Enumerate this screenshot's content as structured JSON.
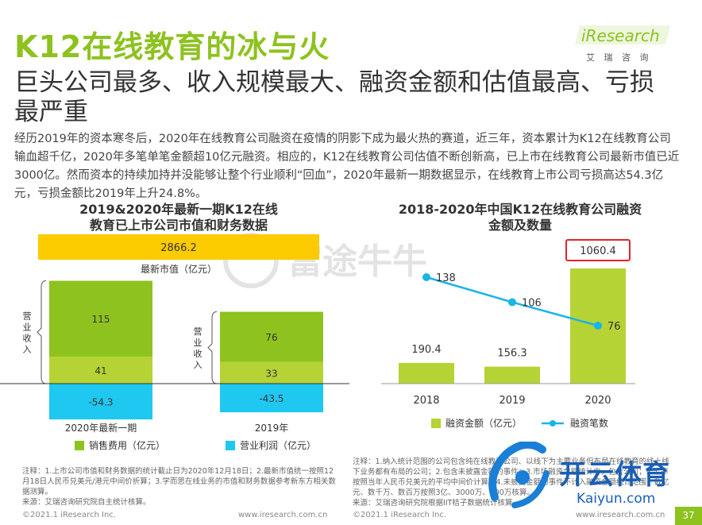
{
  "header": {
    "title": "K12在线教育的冰与火",
    "subtitle": "巨头公司最多、收入规模最大、融资金额和估值最高、亏损最严重",
    "body": "经历2019年的资本寒冬后，2020年在线教育公司融资在疫情的阴影下成为最火热的赛道，近三年，资本累计为K12在线教育公司输血超千亿，2020年多笔单笔金额超10亿元融资。相应的，K12在线教育公司估值不断创新高，已上市在线教育公司最新市值已近3000亿。然而资本的持续加持并没能够让整个行业顺利“回血”，2020年最新一期数据显示，在线教育上市公司亏损高达54.3亿元，亏损金额比2019年上升24.8%。"
  },
  "logo": {
    "name": "iResearch",
    "cn": "艾 瑞 咨 询"
  },
  "watermark": "富途牛牛",
  "colors": {
    "green": "#8dc21f",
    "green_dark": "#7ab33a",
    "green_light": "#b5d334",
    "blue": "#1ec8f0",
    "line_blue": "#1ab4e6",
    "yellow": "#fccb00",
    "red": "#e0242b"
  },
  "chart_data": [
    {
      "type": "bar",
      "title": "2019&2020年最新一期K12在线教育已上市公司市值和财务数据",
      "market_value": {
        "label": "最新市值（亿元）",
        "value": 2866.2,
        "display": "2866.2"
      },
      "categories": [
        "2020年最新一期",
        "2019年"
      ],
      "revenue_group_label": "营业收入",
      "series": [
        {
          "name": "销售费用（亿元）",
          "values": [
            115,
            76
          ],
          "color": "#8dc21f"
        },
        {
          "name": "",
          "values": [
            41,
            33
          ],
          "color": "#b5d334"
        },
        {
          "name": "营业利润（亿元）",
          "values": [
            -54.3,
            -43.5
          ],
          "color": "#1ec8f0"
        }
      ],
      "labels": [
        "115",
        "41",
        "-54.3",
        "76",
        "33",
        "-43.5"
      ],
      "legend": [
        "销售费用（亿元）",
        "营业利润（亿元）"
      ],
      "legend_placement": "bottom"
    },
    {
      "type": "bar+line",
      "title": "2018-2020年中国K12在线教育公司融资金额及数量",
      "categories": [
        "2018",
        "2019",
        "2020"
      ],
      "series": [
        {
          "name": "融资金额（亿元）",
          "type": "bar",
          "values": [
            190.4,
            156.3,
            1060.4
          ],
          "labels": [
            "190.4",
            "156.3",
            "1060.4"
          ]
        },
        {
          "name": "融资笔数",
          "type": "line",
          "values": [
            138,
            106,
            76
          ],
          "labels": [
            "138",
            "106",
            "76"
          ]
        }
      ],
      "highlight": "1060.4",
      "legend_placement": "bottom"
    }
  ],
  "notes": {
    "left": "注释：1.上市公司市值和财务数据的统计截止日为2020年12月18日；2.最新市值统一按照12月18日人民币兑美元/港元中间价折算；3.学而思在线业务的市值和财务数据参考新东方相关数据测算。",
    "left_source": "来源：艾瑞咨询研究院自主统计核算。",
    "right": "注释：1.纳入统计范围的公司包含纯在线教育公司、以线下为主要业务但布局在线教育的线上线下业务都有布局的公司；2.包含未披露金额的事件；3.市场融资金额统计中，包含公司；3.汇率按照当年人民币兑美元的平均中间价计算；4.未披露金额的事件不计入融资金额统计范围，数亿元、数千万、数百万按照3亿、3000万、300万核算。",
    "right_source": "来源：艾瑞咨询研究院根据IIT桔子数据统计核算。"
  },
  "footer": {
    "left_copy": "©2021.1 iResearch Inc.",
    "left_url": "www.iresearch.com.cn",
    "right_copy": "©2021.1 iResearch Inc.",
    "right_url": "www.iresearch.com.cn",
    "page": "37"
  },
  "overlay": {
    "brand": "开云体育",
    "url": "Kaiyun.com"
  }
}
